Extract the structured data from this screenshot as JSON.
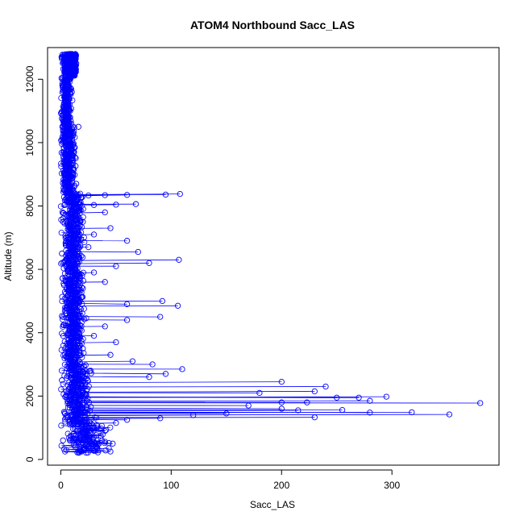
{
  "chart_data": {
    "type": "scatter",
    "title": "ATOM4 Northbound Sacc_LAS",
    "xlabel": "Sacc_LAS",
    "ylabel": "Altitude (m)",
    "xlim": [
      -12,
      397
    ],
    "ylim": [
      -180,
      13000
    ],
    "xticks": [
      0,
      100,
      200,
      300
    ],
    "yticks": [
      0,
      2000,
      4000,
      6000,
      8000,
      10000,
      12000
    ],
    "grid": false,
    "legend": "none",
    "colors": {
      "series": "#0000ff",
      "axis": "#000000",
      "background": "#ffffff"
    },
    "marker": "open-circle",
    "connected": true,
    "sample_points": [
      [
        10,
        12800
      ],
      [
        12,
        12750
      ],
      [
        9,
        12600
      ],
      [
        14,
        12500
      ],
      [
        11,
        12300
      ],
      [
        8,
        12000
      ],
      [
        10,
        11600
      ],
      [
        7,
        11200
      ],
      [
        6,
        10800
      ],
      [
        16,
        10500
      ],
      [
        8,
        10100
      ],
      [
        12,
        9700
      ],
      [
        9,
        9300
      ],
      [
        11,
        9000
      ],
      [
        14,
        8700
      ],
      [
        108,
        8380
      ],
      [
        95,
        8360
      ],
      [
        60,
        8350
      ],
      [
        40,
        8340
      ],
      [
        25,
        8330
      ],
      [
        12,
        8200
      ],
      [
        8,
        8100
      ],
      [
        68,
        8060
      ],
      [
        50,
        8040
      ],
      [
        30,
        8030
      ],
      [
        40,
        7800
      ],
      [
        20,
        7500
      ],
      [
        45,
        7300
      ],
      [
        30,
        7100
      ],
      [
        60,
        6900
      ],
      [
        25,
        6700
      ],
      [
        70,
        6550
      ],
      [
        107,
        6300
      ],
      [
        80,
        6200
      ],
      [
        50,
        6100
      ],
      [
        30,
        5900
      ],
      [
        40,
        5600
      ],
      [
        20,
        5400
      ],
      [
        92,
        5000
      ],
      [
        60,
        4900
      ],
      [
        106,
        4850
      ],
      [
        90,
        4500
      ],
      [
        60,
        4400
      ],
      [
        40,
        4200
      ],
      [
        30,
        3900
      ],
      [
        50,
        3700
      ],
      [
        20,
        3500
      ],
      [
        45,
        3300
      ],
      [
        65,
        3100
      ],
      [
        83,
        3000
      ],
      [
        110,
        2850
      ],
      [
        95,
        2700
      ],
      [
        80,
        2600
      ],
      [
        240,
        2300
      ],
      [
        200,
        2450
      ],
      [
        230,
        2150
      ],
      [
        180,
        2100
      ],
      [
        295,
        1980
      ],
      [
        270,
        1950
      ],
      [
        250,
        1950
      ],
      [
        223,
        1800
      ],
      [
        380,
        1780
      ],
      [
        280,
        1850
      ],
      [
        200,
        1800
      ],
      [
        170,
        1700
      ],
      [
        255,
        1560
      ],
      [
        215,
        1550
      ],
      [
        200,
        1600
      ],
      [
        150,
        1450
      ],
      [
        352,
        1420
      ],
      [
        318,
        1490
      ],
      [
        280,
        1480
      ],
      [
        230,
        1330
      ],
      [
        120,
        1400
      ],
      [
        90,
        1300
      ],
      [
        60,
        1250
      ],
      [
        50,
        1150
      ],
      [
        40,
        900
      ],
      [
        30,
        700
      ],
      [
        47,
        500
      ],
      [
        25,
        400
      ],
      [
        45,
        250
      ],
      [
        15,
        220
      ],
      [
        5,
        300
      ],
      [
        2,
        600
      ],
      [
        3,
        1500
      ],
      [
        1,
        2500
      ],
      [
        4,
        3500
      ],
      [
        2,
        4500
      ],
      [
        3,
        5500
      ],
      [
        1,
        6500
      ],
      [
        2,
        7500
      ],
      [
        3,
        9000
      ],
      [
        2,
        10500
      ],
      [
        4,
        11000
      ]
    ]
  }
}
